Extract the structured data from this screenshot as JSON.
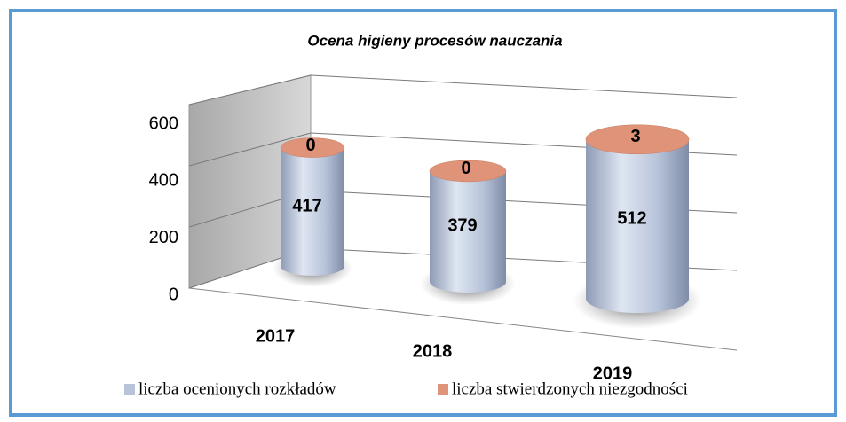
{
  "chart_data": {
    "type": "cylinder3d",
    "title": "Ocena higieny procesów nauczania",
    "categories": [
      "2017",
      "2018",
      "2019"
    ],
    "series": [
      {
        "name": "liczba ocenionych rozkładów",
        "color": "#b7c3d9",
        "values": [
          417,
          379,
          512
        ]
      },
      {
        "name": "liczba stwierdzonych niezgodności",
        "color": "#df9479",
        "values": [
          0,
          0,
          3
        ]
      }
    ],
    "ylim": [
      0,
      600
    ],
    "yticks": [
      0,
      200,
      400,
      600
    ],
    "grid": true,
    "legend": "bottom"
  }
}
